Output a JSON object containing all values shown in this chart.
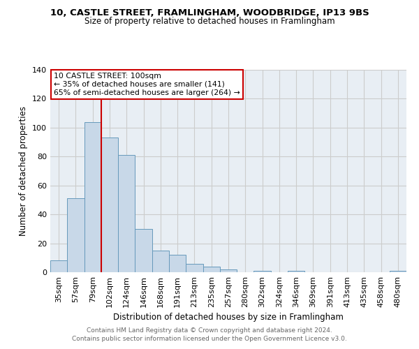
{
  "title_line1": "10, CASTLE STREET, FRAMLINGHAM, WOODBRIDGE, IP13 9BS",
  "title_line2": "Size of property relative to detached houses in Framlingham",
  "xlabel": "Distribution of detached houses by size in Framlingham",
  "ylabel": "Number of detached properties",
  "bar_labels": [
    "35sqm",
    "57sqm",
    "79sqm",
    "102sqm",
    "124sqm",
    "146sqm",
    "168sqm",
    "191sqm",
    "213sqm",
    "235sqm",
    "257sqm",
    "280sqm",
    "302sqm",
    "324sqm",
    "346sqm",
    "369sqm",
    "391sqm",
    "413sqm",
    "435sqm",
    "458sqm",
    "480sqm"
  ],
  "bar_values": [
    8,
    51,
    104,
    93,
    81,
    30,
    15,
    12,
    6,
    4,
    2,
    0,
    1,
    0,
    1,
    0,
    0,
    0,
    0,
    0,
    1
  ],
  "bar_color": "#c8d8e8",
  "bar_edge_color": "#6699bb",
  "vline_x": 2.5,
  "vline_color": "#cc0000",
  "annotation_text": "10 CASTLE STREET: 100sqm\n← 35% of detached houses are smaller (141)\n65% of semi-detached houses are larger (264) →",
  "annotation_box_color": "white",
  "annotation_box_edge": "#cc0000",
  "ylim": [
    0,
    140
  ],
  "yticks": [
    0,
    20,
    40,
    60,
    80,
    100,
    120,
    140
  ],
  "grid_color": "#cccccc",
  "background_color": "#e8eef4",
  "footer_line1": "Contains HM Land Registry data © Crown copyright and database right 2024.",
  "footer_line2": "Contains public sector information licensed under the Open Government Licence v3.0."
}
